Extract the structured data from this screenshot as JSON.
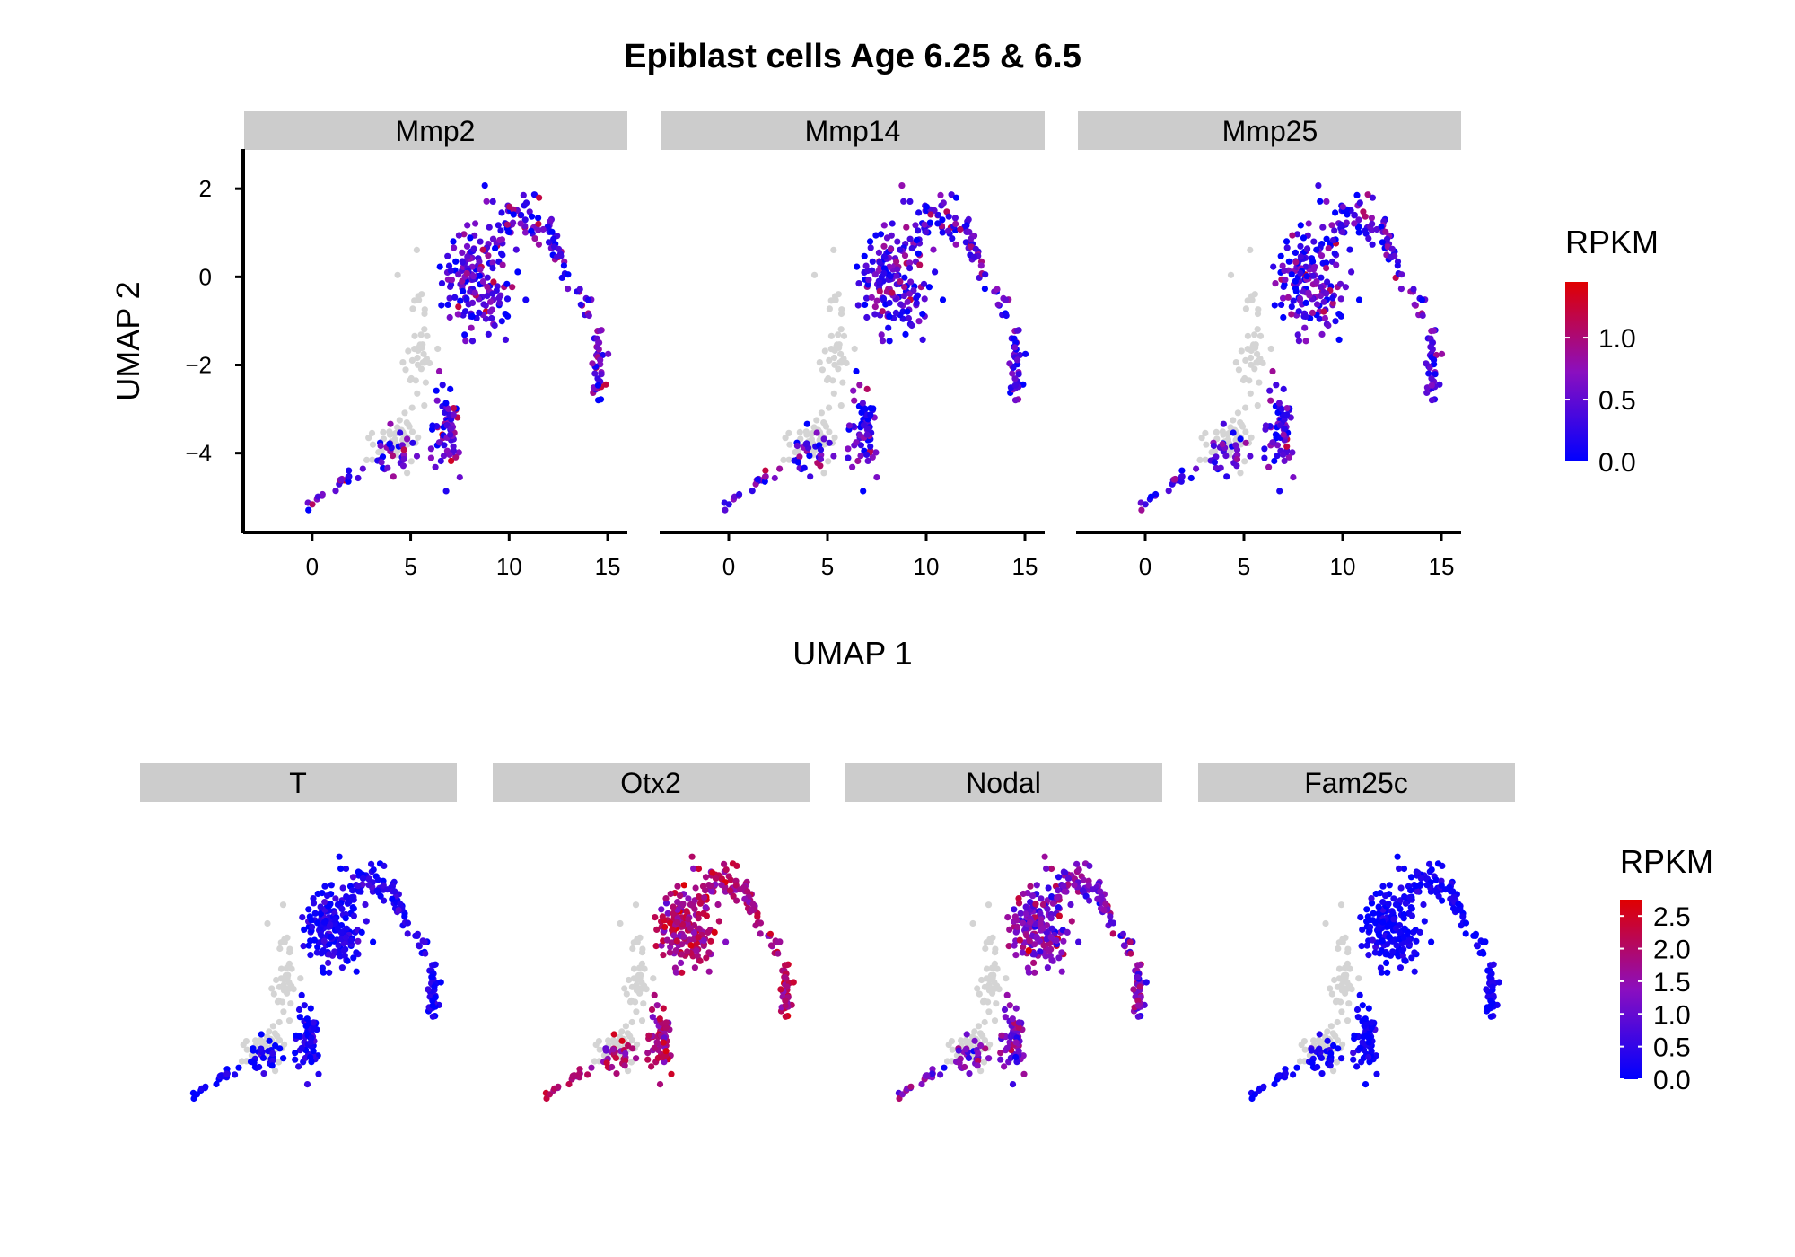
{
  "title": "Epiblast cells Age 6.25 & 6.5",
  "colors": {
    "low": "#0000ff",
    "mid": "#8b0fbf",
    "high": "#e00000",
    "na": "#d4d4d4",
    "strip": "#cccccc"
  },
  "chart_data": [
    {
      "type": "scatter",
      "facets": [
        "Mmp2",
        "Mmp14",
        "Mmp25"
      ],
      "xlabel": "UMAP 1",
      "ylabel": "UMAP 2",
      "xlim": [
        -3.5,
        16
      ],
      "ylim": [
        -5.8,
        2.9
      ],
      "xticks": [
        0,
        5,
        10,
        15
      ],
      "yticks": [
        2,
        0,
        -2,
        -4
      ],
      "xtick_labels": [
        "0",
        "5",
        "10",
        "15"
      ],
      "ytick_labels": [
        "2",
        "0",
        "−2",
        "−4"
      ],
      "legend": {
        "title": "RPKM",
        "min": 0,
        "max": 1.45,
        "ticks": [
          0.0,
          0.5,
          1.0
        ],
        "tick_labels": [
          "0.0",
          "0.5",
          "1.0"
        ],
        "position": "right"
      },
      "clusters": [
        {
          "cx": 8.4,
          "cy": 0.0,
          "sx": 1.6,
          "sy": 1.3,
          "n": 160
        },
        {
          "cx": 10.8,
          "cy": 1.0,
          "sx": 1.4,
          "sy": 0.4,
          "n": 55
        },
        {
          "cx": 13.2,
          "cy": 0.2,
          "sx": 0.8,
          "sy": 0.6,
          "n": 35
        },
        {
          "cx": 14.7,
          "cy": -2.0,
          "sx": 0.4,
          "sy": 0.8,
          "n": 35
        },
        {
          "cx": 6.8,
          "cy": -3.5,
          "sx": 0.8,
          "sy": 0.9,
          "n": 60
        },
        {
          "cx": 4.2,
          "cy": -4.0,
          "sx": 1.0,
          "sy": 0.4,
          "n": 30
        },
        {
          "cx": 1.2,
          "cy": -4.7,
          "sx": 1.0,
          "sy": 0.35,
          "n": 22
        }
      ],
      "na_clusters": [
        {
          "cx": 5.5,
          "cy": -1.5,
          "sx": 0.6,
          "sy": 1.4,
          "n": 40
        },
        {
          "cx": 4.0,
          "cy": -3.7,
          "sx": 1.2,
          "sy": 0.5,
          "n": 50
        }
      ],
      "facet_levels": [
        {
          "name": "Mmp2",
          "mean": 0.45,
          "spread": 0.35
        },
        {
          "name": "Mmp14",
          "mean": 0.4,
          "spread": 0.35
        },
        {
          "name": "Mmp25",
          "mean": 0.35,
          "spread": 0.35
        }
      ]
    },
    {
      "type": "scatter",
      "facets": [
        "T",
        "Otx2",
        "Nodal",
        "Fam25c"
      ],
      "xlim": [
        -3.5,
        16
      ],
      "ylim": [
        -5.8,
        2.9
      ],
      "legend": {
        "title": "RPKM",
        "min": 0,
        "max": 2.75,
        "ticks": [
          0.0,
          0.5,
          1.0,
          1.5,
          2.0,
          2.5
        ],
        "tick_labels": [
          "0.0",
          "0.5",
          "1.0",
          "1.5",
          "2.0",
          "2.5"
        ],
        "position": "right"
      },
      "facet_levels": [
        {
          "name": "T",
          "mean": 0.25,
          "spread": 0.3
        },
        {
          "name": "Otx2",
          "mean": 1.9,
          "spread": 0.4
        },
        {
          "name": "Nodal",
          "mean": 1.3,
          "spread": 0.5
        },
        {
          "name": "Fam25c",
          "mean": 0.15,
          "spread": 0.2
        }
      ]
    }
  ]
}
